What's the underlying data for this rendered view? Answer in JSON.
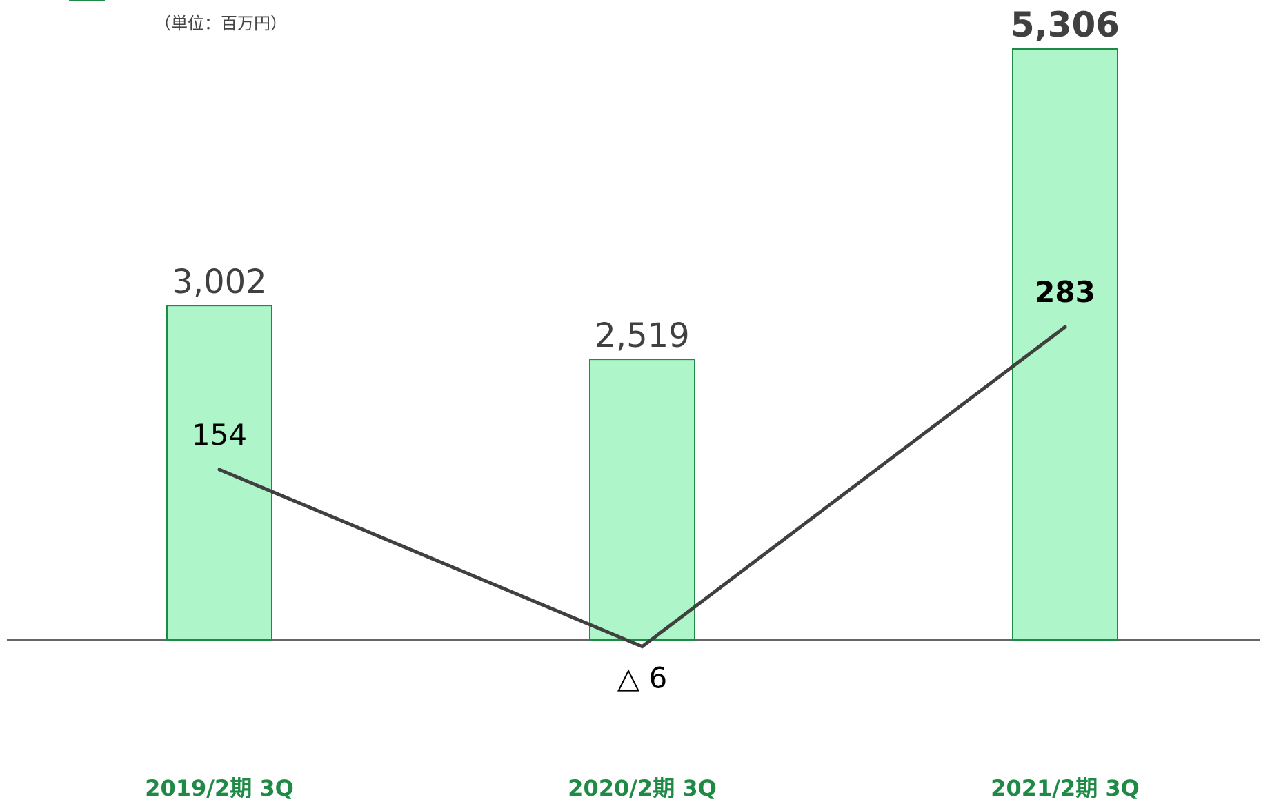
{
  "unit_label": "（単位：百万円）",
  "colors": {
    "bar_fill": "#aef5c9",
    "bar_stroke": "#1e8a45",
    "line": "#404040",
    "category_label": "#1e8a45",
    "bar_label": "#404040",
    "line_label": "#000000",
    "axis": "#666666"
  },
  "chart_data": {
    "type": "bar",
    "title": "",
    "xlabel": "",
    "ylabel": "",
    "categories": [
      "2019/2期 3Q",
      "2020/2期 3Q",
      "2021/2期 3Q"
    ],
    "series": [
      {
        "kind": "bar",
        "values": [
          3002,
          2519,
          5306
        ],
        "labels": [
          "3,002",
          "2,519",
          "5,306"
        ]
      },
      {
        "kind": "line",
        "values": [
          154,
          -6,
          283
        ],
        "labels": [
          "154",
          "△ 6",
          "283"
        ]
      }
    ]
  }
}
